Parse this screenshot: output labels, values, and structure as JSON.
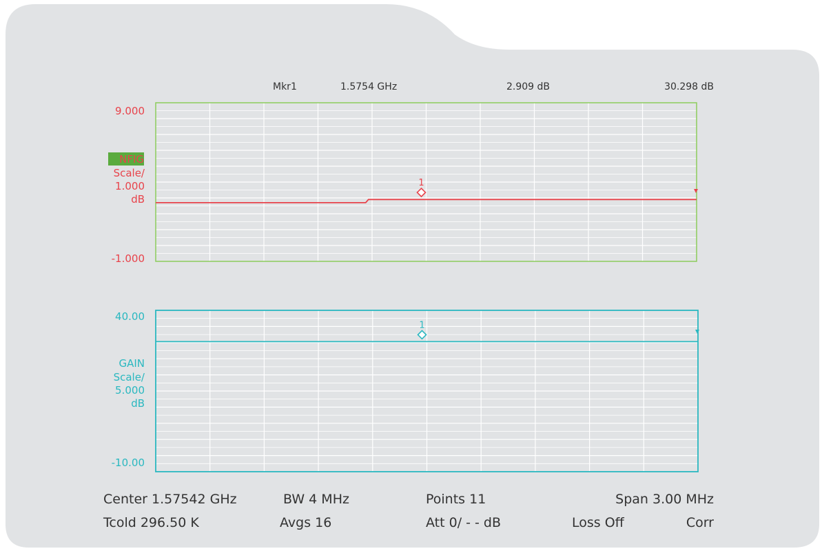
{
  "colors": {
    "panel_bg": "#e1e3e5",
    "grid": "#ffffff",
    "nfig": "#e8434b",
    "nfig_border": "#8ccc5c",
    "nfig_badge_bg": "#5aab3e",
    "gain": "#2ab8c0",
    "text": "#333333"
  },
  "marker_header": {
    "name": "Mkr1",
    "frequency": "1.5754 GHz",
    "nfig_value": "2.909 dB",
    "gain_value": "30.298 dB"
  },
  "top_trace": {
    "top_label": "9.000",
    "bottom_label": "-1.000",
    "badge": "NFIG",
    "scale_label": "Scale/",
    "scale_value": "1.000",
    "unit": "dB",
    "marker_number": "1"
  },
  "bottom_trace": {
    "top_label": "40.00",
    "bottom_label": "-10.00",
    "name": "GAIN",
    "scale_label": "Scale/",
    "scale_value": "5.000",
    "unit": "dB",
    "marker_number": "1"
  },
  "footer": {
    "row1": {
      "center": "Center 1.57542 GHz",
      "bw": "BW 4 MHz",
      "points": "Points 11",
      "span": "Span 3.00 MHz"
    },
    "row2": {
      "tcold": "Tcold 296.50 K",
      "avgs": "Avgs 16",
      "att": "Att 0/ - - dB",
      "loss": "Loss Off",
      "corr": "Corr"
    }
  },
  "chart_data": [
    {
      "type": "line",
      "x": [
        0,
        1,
        2,
        3,
        4,
        5,
        6,
        7,
        8,
        9,
        10
      ],
      "series": [
        {
          "values": [
            2.7,
            2.7,
            2.7,
            2.7,
            2.9,
            2.9,
            2.9,
            2.9,
            2.9,
            2.9,
            2.9
          ]
        }
      ],
      "ylim": [
        -1.0,
        9.0
      ],
      "xlim": [
        0,
        10
      ],
      "grid": true,
      "marker": {
        "x": 5,
        "y": 2.909
      }
    },
    {
      "type": "line",
      "x": [
        0,
        1,
        2,
        3,
        4,
        5,
        6,
        7,
        8,
        9,
        10
      ],
      "series": [
        {
          "values": [
            30.3,
            30.3,
            30.3,
            30.3,
            30.3,
            30.3,
            30.3,
            30.3,
            30.3,
            30.3,
            30.3
          ]
        }
      ],
      "ylim": [
        -10.0,
        40.0
      ],
      "xlim": [
        0,
        10
      ],
      "grid": true,
      "marker": {
        "x": 5,
        "y": 30.298
      }
    }
  ]
}
